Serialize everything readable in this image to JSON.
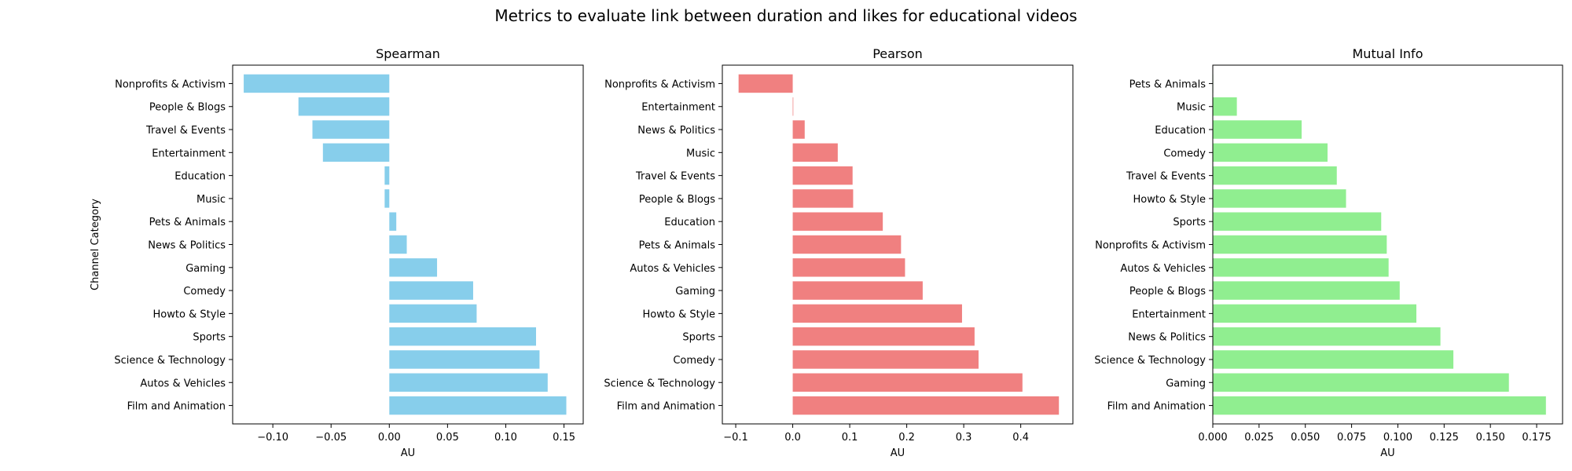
{
  "suptitle": "Metrics to evaluate link between duration and likes for educational videos",
  "chart_data": [
    {
      "type": "bar",
      "orientation": "horizontal",
      "title": "Spearman",
      "xlabel": "AU",
      "ylabel": "Channel Category",
      "color": "#87ceeb",
      "xlim": [
        -0.1345,
        0.1665
      ],
      "xticks": [
        -0.1,
        -0.05,
        0.0,
        0.05,
        0.1,
        0.15
      ],
      "xtick_labels": [
        "−0.10",
        "−0.05",
        "0.00",
        "0.05",
        "0.10",
        "0.15"
      ],
      "categories": [
        "Nonprofits & Activism",
        "People & Blogs",
        "Travel & Events",
        "Entertainment",
        "Education",
        "Music",
        "Pets & Animals",
        "News & Politics",
        "Gaming",
        "Comedy",
        "Howto & Style",
        "Sports",
        "Science & Technology",
        "Autos & Vehicles",
        "Film and Animation"
      ],
      "values": [
        -0.125,
        -0.078,
        -0.066,
        -0.057,
        -0.004,
        -0.004,
        0.006,
        0.015,
        0.041,
        0.072,
        0.075,
        0.126,
        0.129,
        0.136,
        0.152
      ]
    },
    {
      "type": "bar",
      "orientation": "horizontal",
      "title": "Pearson",
      "xlabel": "AU",
      "ylabel": "",
      "color": "#f08080",
      "xlim": [
        -0.1235,
        0.4915
      ],
      "xticks": [
        -0.1,
        0.0,
        0.1,
        0.2,
        0.3,
        0.4
      ],
      "xtick_labels": [
        "−0.1",
        "0.0",
        "0.1",
        "0.2",
        "0.3",
        "0.4"
      ],
      "categories": [
        "Nonprofits & Activism",
        "Entertainment",
        "News & Politics",
        "Music",
        "Travel & Events",
        "People & Blogs",
        "Education",
        "Pets & Animals",
        "Autos & Vehicles",
        "Gaming",
        "Howto & Style",
        "Sports",
        "Comedy",
        "Science & Technology",
        "Film and Animation"
      ],
      "values": [
        -0.095,
        0.001,
        0.021,
        0.079,
        0.105,
        0.106,
        0.158,
        0.19,
        0.197,
        0.228,
        0.297,
        0.319,
        0.326,
        0.403,
        0.467
      ]
    },
    {
      "type": "bar",
      "orientation": "horizontal",
      "title": "Mutual Info",
      "xlabel": "AU",
      "ylabel": "",
      "color": "#90ee90",
      "xlim": [
        0,
        0.189
      ],
      "xticks": [
        0.0,
        0.025,
        0.05,
        0.075,
        0.1,
        0.125,
        0.15,
        0.175
      ],
      "xtick_labels": [
        "0.000",
        "0.025",
        "0.050",
        "0.075",
        "0.100",
        "0.125",
        "0.150",
        "0.175"
      ],
      "categories": [
        "Pets & Animals",
        "Music",
        "Education",
        "Comedy",
        "Travel & Events",
        "Howto & Style",
        "Sports",
        "Nonprofits & Activism",
        "Autos & Vehicles",
        "People & Blogs",
        "Entertainment",
        "News & Politics",
        "Science & Technology",
        "Gaming",
        "Film and Animation"
      ],
      "values": [
        0.0,
        0.013,
        0.048,
        0.062,
        0.067,
        0.072,
        0.091,
        0.094,
        0.095,
        0.101,
        0.11,
        0.123,
        0.13,
        0.16,
        0.18
      ]
    }
  ]
}
